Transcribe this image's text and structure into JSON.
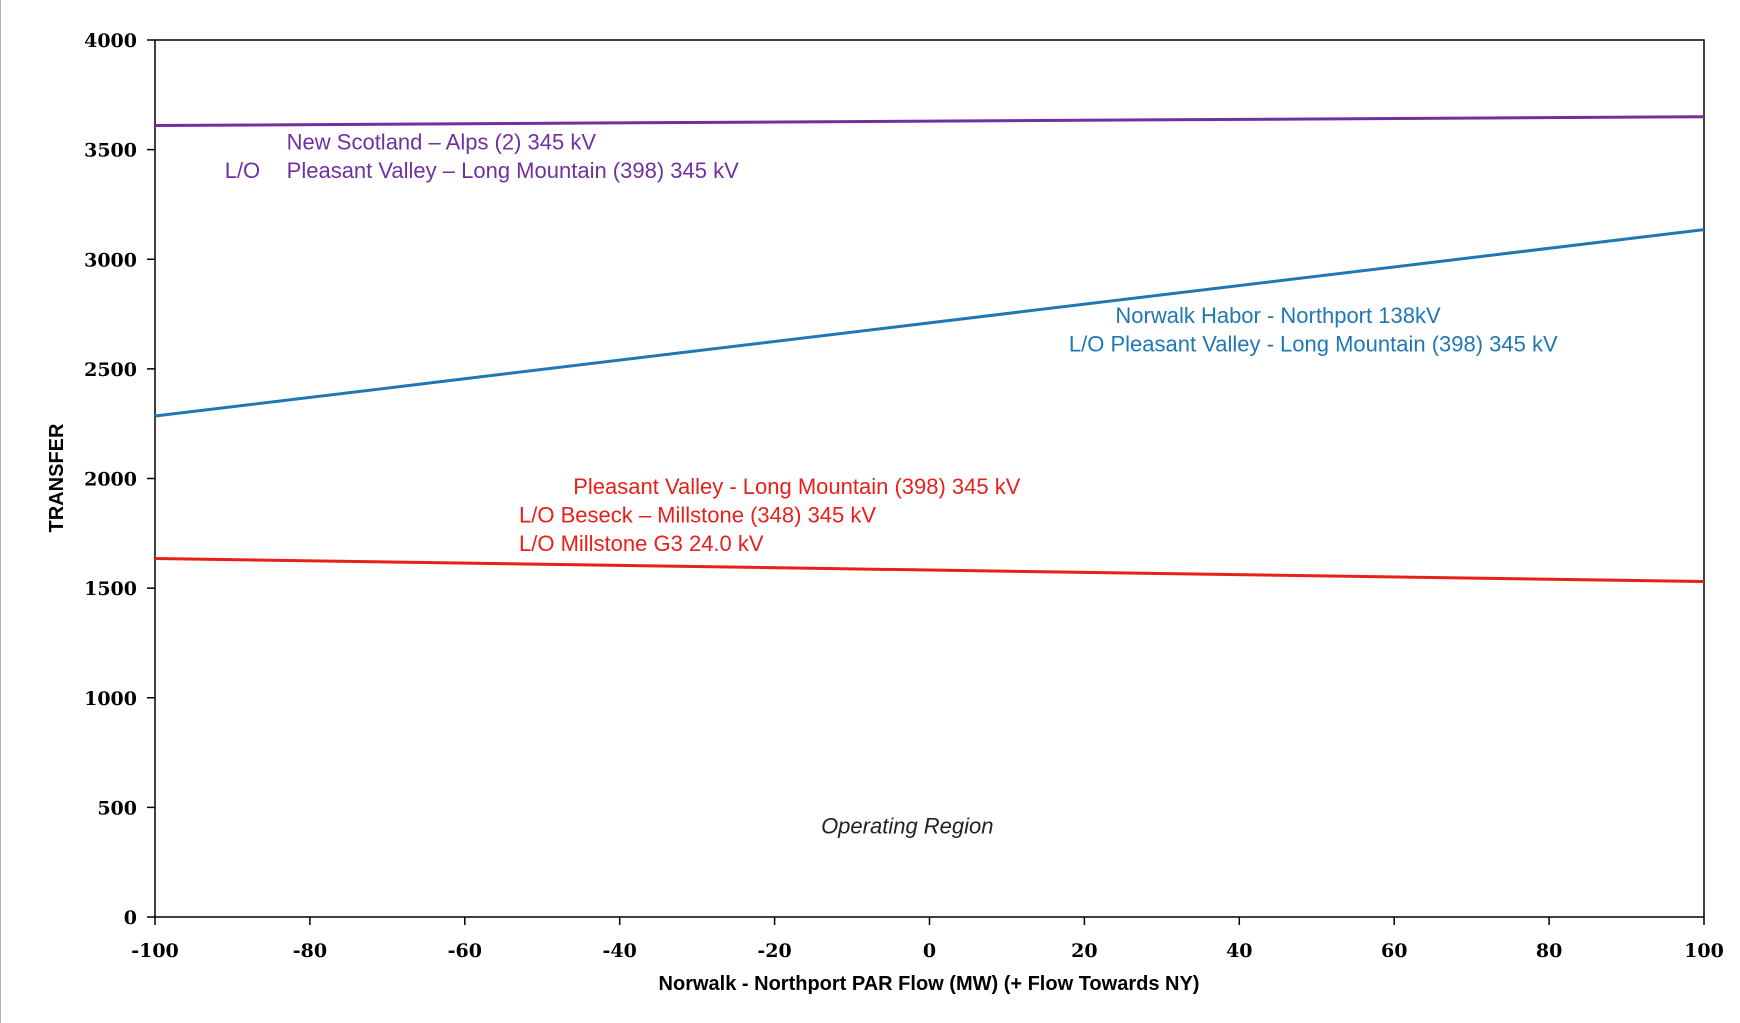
{
  "chart_data": {
    "type": "line",
    "title": "",
    "xlabel": "Norwalk - Northport PAR Flow (MW) (+ Flow Towards NY)",
    "ylabel": "TRANSFER",
    "xlim": [
      -100,
      100
    ],
    "ylim": [
      0,
      4000
    ],
    "x_ticks": [
      "-100",
      "-80",
      "-60",
      "-40",
      "-20",
      "0",
      "20",
      "40",
      "60",
      "80",
      "100"
    ],
    "y_ticks": [
      "0",
      "500",
      "1000",
      "1500",
      "2000",
      "2500",
      "3000",
      "3500",
      "4000"
    ],
    "grid": false,
    "legend": "none",
    "series": [
      {
        "color": "#7030a0",
        "x": [
          -100,
          100
        ],
        "y": [
          3610,
          3650
        ],
        "label_lines": [
          "New Scotland – Alps (2) 345 kV",
          "L/O",
          "Pleasant Valley –  Long Mountain (398) 345 kV"
        ],
        "label_x": [
          -83,
          -91,
          -83
        ],
        "label_y": [
          3500,
          3370,
          3370
        ]
      },
      {
        "color": "#1f77b4",
        "x": [
          -100,
          100
        ],
        "y": [
          2285,
          3135
        ],
        "label_lines": [
          "Norwalk Habor - Northport 138kV",
          "L/O Pleasant Valley - Long Mountain (398) 345 kV"
        ],
        "label_x": [
          24,
          18
        ],
        "label_y": [
          2710,
          2580
        ]
      },
      {
        "color": "#e8201a",
        "x": [
          -100,
          100
        ],
        "y": [
          1635,
          1530
        ],
        "label_lines": [
          "Pleasant Valley - Long Mountain (398) 345 kV",
          "L/O Beseck – Millstone (348) 345 kV",
          "L/O Millstone G3 24.0 kV"
        ],
        "label_x": [
          -46,
          -53,
          -53
        ],
        "label_y": [
          1930,
          1800,
          1670
        ]
      }
    ],
    "annotations": [
      {
        "text": "Operating Region",
        "x": -14,
        "y": 380
      }
    ]
  }
}
